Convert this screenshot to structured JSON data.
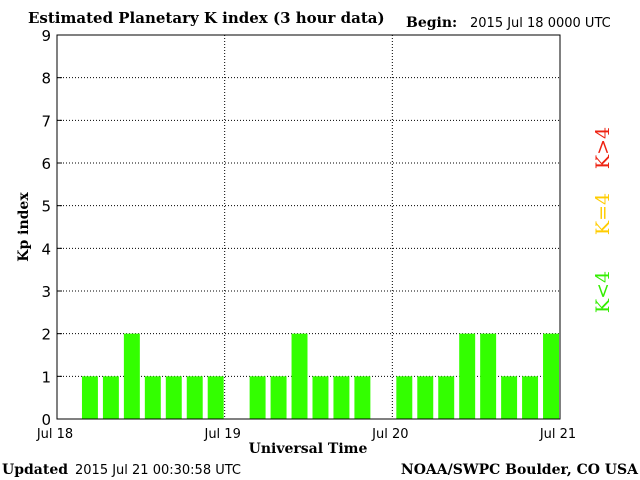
{
  "chart_data": {
    "type": "bar",
    "title": "Estimated Planetary K index (3 hour data)",
    "begin_label": "Begin:",
    "begin_value": "2015 Jul 18 0000 UTC",
    "xlabel": "Universal Time",
    "ylabel": "Kp index",
    "ylim": [
      0,
      9
    ],
    "yticks": [
      "0",
      "1",
      "2",
      "3",
      "4",
      "5",
      "6",
      "7",
      "8",
      "9"
    ],
    "xticks": [
      "Jul 18",
      "Jul 19",
      "Jul 20",
      "Jul 21"
    ],
    "grid": "dotted",
    "bar_color": "#33ff00",
    "values": [
      null,
      1,
      1,
      2,
      1,
      1,
      1,
      1,
      null,
      1,
      1,
      2,
      1,
      1,
      1,
      null,
      1,
      1,
      1,
      2,
      2,
      1,
      1,
      2
    ],
    "legend": [
      {
        "label": "K<4",
        "color": "#33ee00"
      },
      {
        "label": "K=4",
        "color": "#ffcc00"
      },
      {
        "label": "K>4",
        "color": "#ee2211"
      }
    ]
  },
  "footer": {
    "updated_label": "Updated",
    "updated_value": "2015 Jul 21 00:30:58 UTC",
    "credit": "NOAA/SWPC Boulder, CO USA"
  }
}
